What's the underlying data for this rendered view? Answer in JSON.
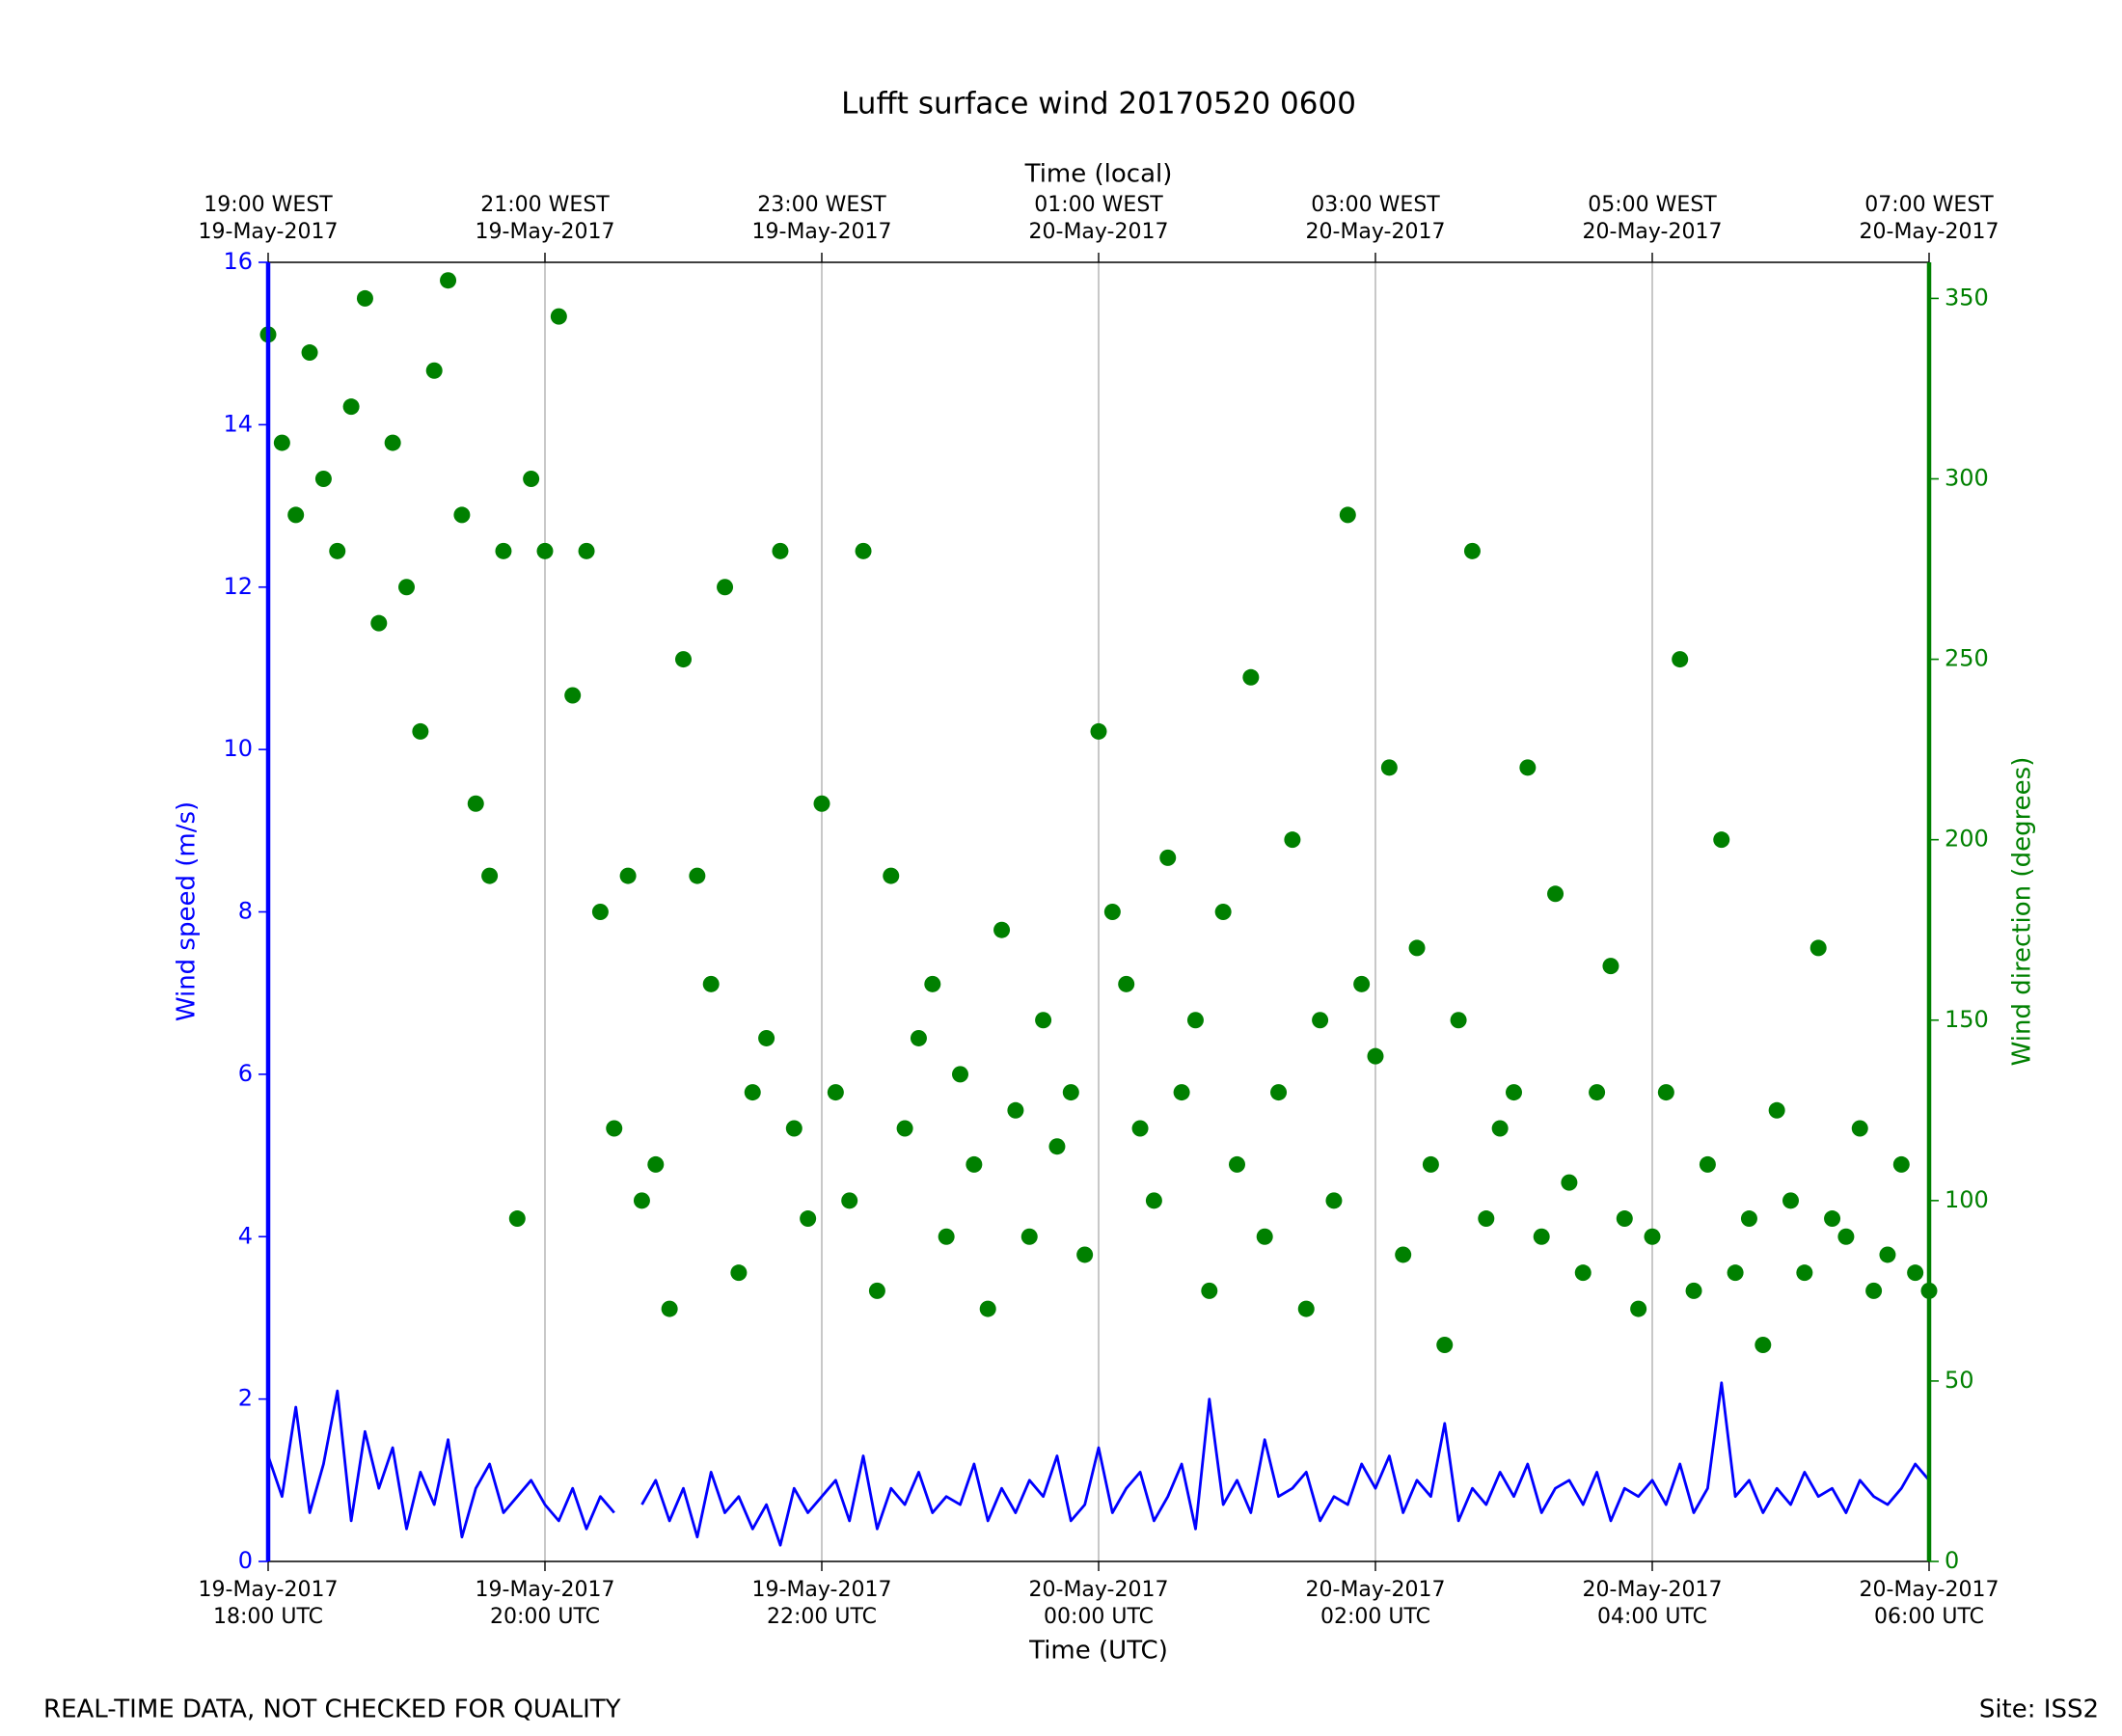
{
  "chart_data": {
    "type": "line",
    "title": "Lufft surface wind 20170520 0600",
    "xlabel": "Time (UTC)",
    "x2label": "Time (local)",
    "ylabel": "Wind speed (m/s)",
    "y2label": "Wind direction (degrees)",
    "annotations": [
      "REAL-TIME DATA, NOT CHECKED FOR QUALITY",
      "Site: ISS2"
    ],
    "grid": true,
    "xlim": [
      "2017-05-19T18:00",
      "2017-05-20T06:00"
    ],
    "xticks": [
      {
        "value": "2017-05-19T18:00",
        "label": "19-May-2017\n18:00 UTC"
      },
      {
        "value": "2017-05-19T20:00",
        "label": "19-May-2017\n20:00 UTC"
      },
      {
        "value": "2017-05-19T22:00",
        "label": "19-May-2017\n22:00 UTC"
      },
      {
        "value": "2017-05-20T00:00",
        "label": "20-May-2017\n00:00 UTC"
      },
      {
        "value": "2017-05-20T02:00",
        "label": "20-May-2017\n02:00 UTC"
      },
      {
        "value": "2017-05-20T04:00",
        "label": "20-May-2017\n04:00 UTC"
      },
      {
        "value": "2017-05-20T06:00",
        "label": "20-May-2017\n06:00 UTC"
      }
    ],
    "x2ticks": [
      {
        "value": "2017-05-19T18:00",
        "label": "19:00 WEST\n19-May-2017"
      },
      {
        "value": "2017-05-19T20:00",
        "label": "21:00 WEST\n19-May-2017"
      },
      {
        "value": "2017-05-19T22:00",
        "label": "23:00 WEST\n19-May-2017"
      },
      {
        "value": "2017-05-20T00:00",
        "label": "01:00 WEST\n20-May-2017"
      },
      {
        "value": "2017-05-20T02:00",
        "label": "03:00 WEST\n20-May-2017"
      },
      {
        "value": "2017-05-20T04:00",
        "label": "05:00 WEST\n20-May-2017"
      },
      {
        "value": "2017-05-20T06:00",
        "label": "07:00 WEST\n20-May-2017"
      }
    ],
    "ylim": [
      0,
      16
    ],
    "yticks": [
      0,
      2,
      4,
      6,
      8,
      10,
      12,
      14,
      16
    ],
    "y2lim": [
      0,
      360
    ],
    "y2ticks": [
      0,
      50,
      100,
      150,
      200,
      250,
      300,
      350
    ],
    "x": [
      "2017-05-19T18:00",
      "2017-05-19T18:06",
      "2017-05-19T18:12",
      "2017-05-19T18:18",
      "2017-05-19T18:24",
      "2017-05-19T18:30",
      "2017-05-19T18:36",
      "2017-05-19T18:42",
      "2017-05-19T18:48",
      "2017-05-19T18:54",
      "2017-05-19T19:00",
      "2017-05-19T19:06",
      "2017-05-19T19:12",
      "2017-05-19T19:18",
      "2017-05-19T19:24",
      "2017-05-19T19:30",
      "2017-05-19T19:36",
      "2017-05-19T19:42",
      "2017-05-19T19:48",
      "2017-05-19T19:54",
      "2017-05-19T20:00",
      "2017-05-19T20:06",
      "2017-05-19T20:12",
      "2017-05-19T20:18",
      "2017-05-19T20:24",
      "2017-05-19T20:30",
      "2017-05-19T20:36",
      "2017-05-19T20:42",
      "2017-05-19T20:48",
      "2017-05-19T20:54",
      "2017-05-19T21:00",
      "2017-05-19T21:06",
      "2017-05-19T21:12",
      "2017-05-19T21:18",
      "2017-05-19T21:24",
      "2017-05-19T21:30",
      "2017-05-19T21:36",
      "2017-05-19T21:42",
      "2017-05-19T21:48",
      "2017-05-19T21:54",
      "2017-05-19T22:00",
      "2017-05-19T22:06",
      "2017-05-19T22:12",
      "2017-05-19T22:18",
      "2017-05-19T22:24",
      "2017-05-19T22:30",
      "2017-05-19T22:36",
      "2017-05-19T22:42",
      "2017-05-19T22:48",
      "2017-05-19T22:54",
      "2017-05-19T23:00",
      "2017-05-19T23:06",
      "2017-05-19T23:12",
      "2017-05-19T23:18",
      "2017-05-19T23:24",
      "2017-05-19T23:30",
      "2017-05-19T23:36",
      "2017-05-19T23:42",
      "2017-05-19T23:48",
      "2017-05-19T23:54",
      "2017-05-20T00:00",
      "2017-05-20T00:06",
      "2017-05-20T00:12",
      "2017-05-20T00:18",
      "2017-05-20T00:24",
      "2017-05-20T00:30",
      "2017-05-20T00:36",
      "2017-05-20T00:42",
      "2017-05-20T00:48",
      "2017-05-20T00:54",
      "2017-05-20T01:00",
      "2017-05-20T01:06",
      "2017-05-20T01:12",
      "2017-05-20T01:18",
      "2017-05-20T01:24",
      "2017-05-20T01:30",
      "2017-05-20T01:36",
      "2017-05-20T01:42",
      "2017-05-20T01:48",
      "2017-05-20T01:54",
      "2017-05-20T02:00",
      "2017-05-20T02:06",
      "2017-05-20T02:12",
      "2017-05-20T02:18",
      "2017-05-20T02:24",
      "2017-05-20T02:30",
      "2017-05-20T02:36",
      "2017-05-20T02:42",
      "2017-05-20T02:48",
      "2017-05-20T02:54",
      "2017-05-20T03:00",
      "2017-05-20T03:06",
      "2017-05-20T03:12",
      "2017-05-20T03:18",
      "2017-05-20T03:24",
      "2017-05-20T03:30",
      "2017-05-20T03:36",
      "2017-05-20T03:42",
      "2017-05-20T03:48",
      "2017-05-20T03:54",
      "2017-05-20T04:00",
      "2017-05-20T04:06",
      "2017-05-20T04:12",
      "2017-05-20T04:18",
      "2017-05-20T04:24",
      "2017-05-20T04:30",
      "2017-05-20T04:36",
      "2017-05-20T04:42",
      "2017-05-20T04:48",
      "2017-05-20T04:54",
      "2017-05-20T05:00",
      "2017-05-20T05:06",
      "2017-05-20T05:12",
      "2017-05-20T05:18",
      "2017-05-20T05:24",
      "2017-05-20T05:30",
      "2017-05-20T05:36",
      "2017-05-20T05:42",
      "2017-05-20T05:48",
      "2017-05-20T05:54",
      "2017-05-20T06:00"
    ],
    "series": [
      {
        "name": "Wind speed",
        "color": "#0000ff",
        "mode": "lines",
        "axis": "y",
        "values": [
          1.3,
          0.8,
          1.9,
          0.6,
          1.2,
          2.1,
          0.5,
          1.6,
          0.9,
          1.4,
          0.4,
          1.1,
          0.7,
          1.5,
          0.3,
          0.9,
          1.2,
          0.6,
          0.8,
          1.0,
          0.7,
          0.5,
          0.9,
          0.4,
          0.8,
          0.6,
          null,
          0.7,
          1.0,
          0.5,
          0.9,
          0.3,
          1.1,
          0.6,
          0.8,
          0.4,
          0.7,
          0.2,
          0.9,
          0.6,
          0.8,
          1.0,
          0.5,
          1.3,
          0.4,
          0.9,
          0.7,
          1.1,
          0.6,
          0.8,
          0.7,
          1.2,
          0.5,
          0.9,
          0.6,
          1.0,
          0.8,
          1.3,
          0.5,
          0.7,
          1.4,
          0.6,
          0.9,
          1.1,
          0.5,
          0.8,
          1.2,
          0.4,
          2.0,
          0.7,
          1.0,
          0.6,
          1.5,
          0.8,
          0.9,
          1.1,
          0.5,
          0.8,
          0.7,
          1.2,
          0.9,
          1.3,
          0.6,
          1.0,
          0.8,
          1.7,
          0.5,
          0.9,
          0.7,
          1.1,
          0.8,
          1.2,
          0.6,
          0.9,
          1.0,
          0.7,
          1.1,
          0.5,
          0.9,
          0.8,
          1.0,
          0.7,
          1.2,
          0.6,
          0.9,
          2.2,
          0.8,
          1.0,
          0.6,
          0.9,
          0.7,
          1.1,
          0.8,
          0.9,
          0.6,
          1.0,
          0.8,
          0.7,
          0.9,
          1.2,
          1.0
        ]
      },
      {
        "name": "Wind direction",
        "color": "#008000",
        "mode": "markers",
        "axis": "y2",
        "values": [
          340,
          310,
          290,
          335,
          300,
          280,
          320,
          350,
          260,
          310,
          270,
          230,
          330,
          355,
          290,
          210,
          190,
          280,
          95,
          300,
          280,
          345,
          240,
          280,
          180,
          120,
          190,
          100,
          110,
          70,
          250,
          190,
          160,
          270,
          80,
          130,
          145,
          280,
          120,
          95,
          210,
          130,
          100,
          280,
          75,
          190,
          120,
          145,
          160,
          90,
          135,
          110,
          70,
          175,
          125,
          90,
          150,
          115,
          130,
          85,
          230,
          180,
          160,
          120,
          100,
          195,
          130,
          150,
          75,
          180,
          110,
          245,
          90,
          130,
          200,
          70,
          150,
          100,
          290,
          160,
          140,
          220,
          85,
          170,
          110,
          60,
          150,
          280,
          95,
          120,
          130,
          220,
          90,
          185,
          105,
          80,
          130,
          165,
          95,
          70,
          90,
          130,
          250,
          75,
          110,
          200,
          80,
          95,
          60,
          125,
          100,
          80,
          170,
          95,
          90,
          120,
          75,
          85,
          110,
          80,
          75
        ]
      }
    ]
  }
}
